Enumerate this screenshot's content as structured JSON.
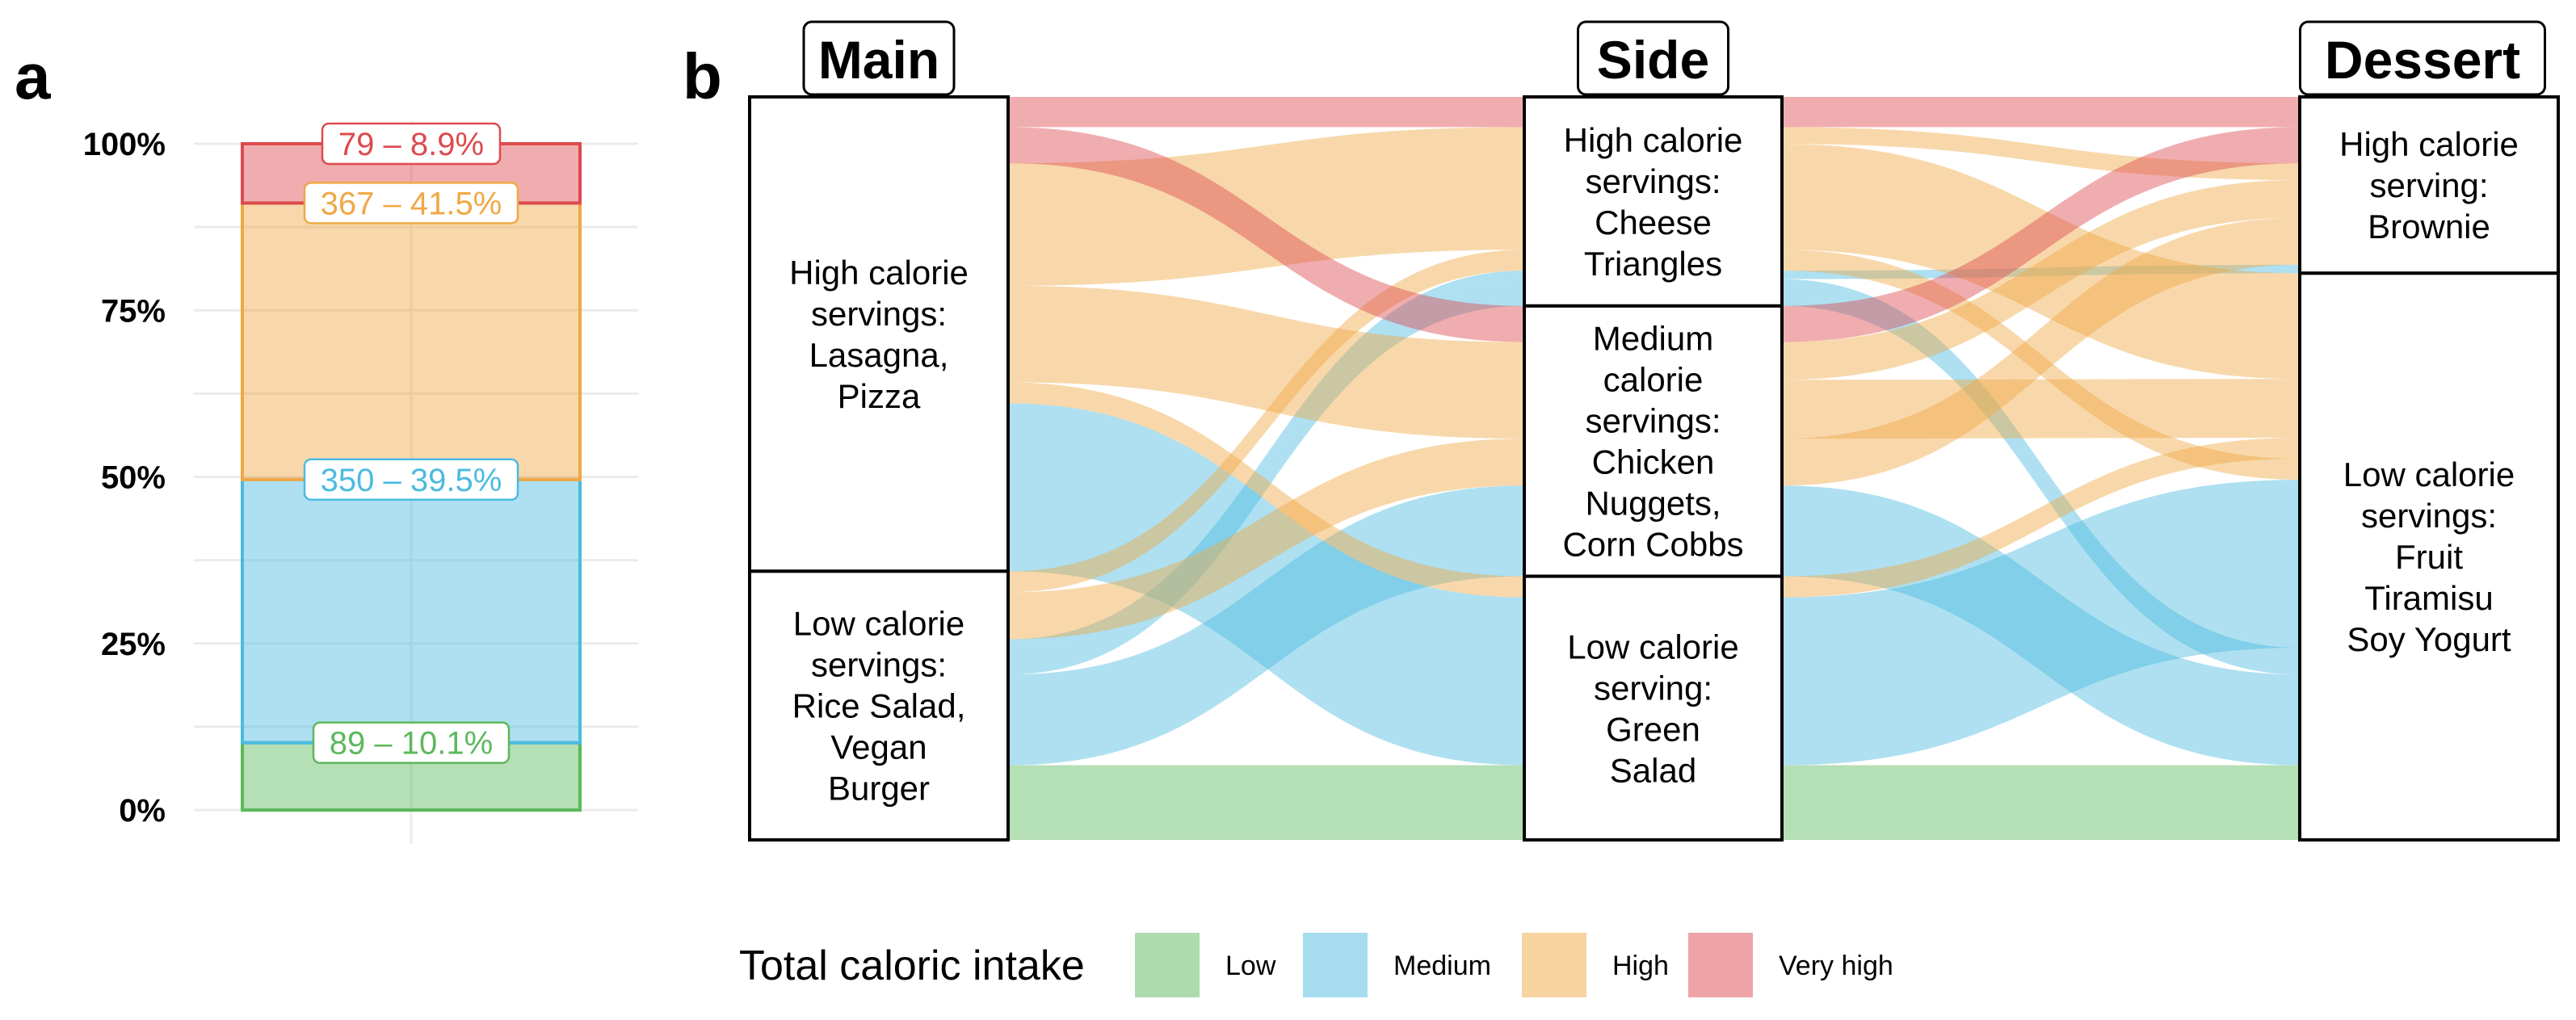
{
  "panel_a_label": "a",
  "panel_b_label": "b",
  "colors": {
    "Low": "#5cb85c",
    "Medium": "#4bbbe0",
    "High": "#f0a845",
    "Very high": "#dd4a4d"
  },
  "chart_data": [
    {
      "type": "bar",
      "panel": "a",
      "stacked": true,
      "ylim": [
        0,
        100
      ],
      "yticks": [
        "0%",
        "25%",
        "50%",
        "75%",
        "100%"
      ],
      "segments": [
        {
          "category": "Low",
          "count": 89,
          "percent": 10.1,
          "label": "89 – 10.1%"
        },
        {
          "category": "Medium",
          "count": 350,
          "percent": 39.5,
          "label": "350 – 39.5%"
        },
        {
          "category": "High",
          "count": 367,
          "percent": 41.5,
          "label": "367 – 41.5%"
        },
        {
          "category": "Very high",
          "count": 79,
          "percent": 8.9,
          "label": "79 – 8.9%"
        }
      ]
    },
    {
      "type": "alluvial",
      "panel": "b",
      "axes": [
        {
          "title": "Main",
          "strata": [
            {
              "label": "High calorie servings: Lasagna, Pizza",
              "lines": [
                "High calorie",
                "servings:",
                "Lasagna,",
                "Pizza"
              ]
            },
            {
              "label": "Low calorie servings: Rice Salad, Vegan Burger",
              "lines": [
                "Low calorie",
                "servings:",
                "Rice Salad,",
                "Vegan",
                "Burger"
              ]
            }
          ]
        },
        {
          "title": "Side",
          "strata": [
            {
              "label": "High calorie servings: Cheese Triangles",
              "lines": [
                "High calorie",
                "servings:",
                "Cheese",
                "Triangles"
              ]
            },
            {
              "label": "Medium calorie servings: Chicken Nuggets, Corn Cobbs",
              "lines": [
                "Medium",
                "calorie",
                "servings:",
                "Chicken",
                "Nuggets,",
                "Corn Cobbs"
              ]
            },
            {
              "label": "Low calorie serving: Green Salad",
              "lines": [
                "Low calorie",
                "serving:",
                "Green",
                "Salad"
              ]
            }
          ]
        },
        {
          "title": "Dessert",
          "strata": [
            {
              "label": "High calorie serving: Brownie",
              "lines": [
                "High calorie",
                "serving:",
                "Brownie"
              ]
            },
            {
              "label": "Low calorie servings: Fruit Tiramisu Soy Yogurt",
              "lines": [
                "Low calorie",
                "servings:",
                "Fruit",
                "Tiramisu",
                "Soy Yogurt"
              ]
            }
          ]
        }
      ],
      "legend_title": "Total caloric intake",
      "legend_items": [
        "Low",
        "Medium",
        "High",
        "Very high"
      ],
      "flows": [
        {
          "category": "Very high",
          "path": [
            0,
            0,
            0
          ],
          "count": 36
        },
        {
          "category": "High",
          "path": [
            0,
            0,
            0
          ],
          "count": 20
        },
        {
          "category": "High",
          "path": [
            0,
            0,
            1
          ],
          "count": 126
        },
        {
          "category": "Very high",
          "path": [
            0,
            1,
            0
          ],
          "count": 43
        },
        {
          "category": "High",
          "path": [
            0,
            1,
            0
          ],
          "count": 45
        },
        {
          "category": "High",
          "path": [
            0,
            1,
            1
          ],
          "count": 70
        },
        {
          "category": "High",
          "path": [
            0,
            2,
            1
          ],
          "count": 25
        },
        {
          "category": "Medium",
          "path": [
            0,
            2,
            1
          ],
          "count": 200
        },
        {
          "category": "High",
          "path": [
            1,
            0,
            1
          ],
          "count": 25
        },
        {
          "category": "Medium",
          "path": [
            1,
            0,
            0
          ],
          "count": 10
        },
        {
          "category": "Medium",
          "path": [
            1,
            0,
            1
          ],
          "count": 32
        },
        {
          "category": "High",
          "path": [
            1,
            1,
            0
          ],
          "count": 56
        },
        {
          "category": "Medium",
          "path": [
            1,
            1,
            1
          ],
          "count": 108
        },
        {
          "category": "Low",
          "path": [
            1,
            2,
            1
          ],
          "count": 89
        }
      ]
    }
  ]
}
